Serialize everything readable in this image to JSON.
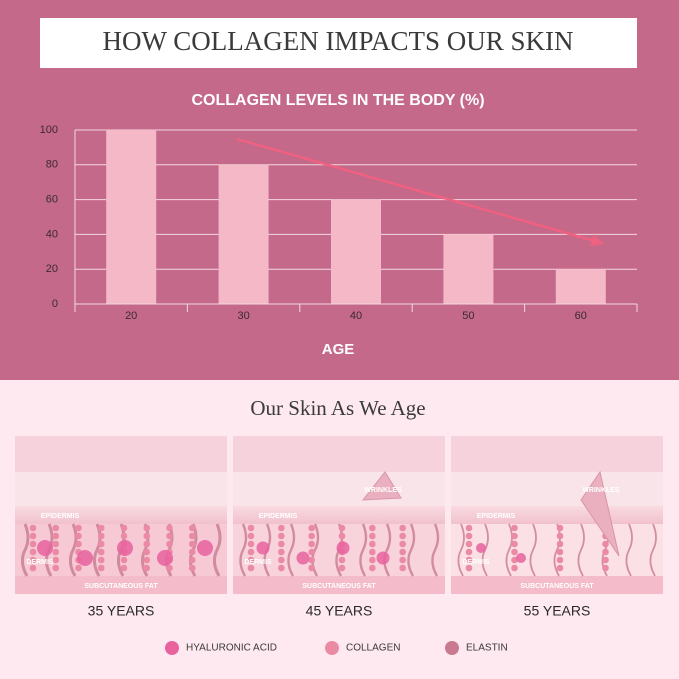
{
  "header": {
    "title": "HOW COLLAGEN IMPACTS OUR SKIN"
  },
  "chart_data": {
    "type": "bar",
    "title": "COLLAGEN LEVELS IN THE BODY (%)",
    "x_label": "AGE",
    "categories": [
      "20",
      "30",
      "40",
      "50",
      "60"
    ],
    "values": [
      100,
      80,
      60,
      40,
      20
    ],
    "color": "#f4b8c6",
    "ylim": [
      0,
      100
    ],
    "yticks": [
      0,
      20,
      40,
      60,
      80,
      100
    ],
    "grid": true
  },
  "skin": {
    "title": "Our Skin As We Age",
    "panels": [
      {
        "caption": "35 YEARS",
        "labels": [
          "EPIDERMIS",
          "DERMIS",
          "SUBCUTANEOUS FAT"
        ]
      },
      {
        "caption": "45 YEARS",
        "labels": [
          "WRINKLES",
          "EPIDERMIS",
          "DERMIS",
          "SUBCUTANEOUS FAT"
        ]
      },
      {
        "caption": "55 YEARS",
        "labels": [
          "WRINKLES",
          "EPIDERMIS",
          "DERMIS",
          "SUBCUTANEOUS FAT"
        ]
      }
    ],
    "legend": [
      {
        "name": "HYALURONIC ACID",
        "color": "#e8629e"
      },
      {
        "name": "COLLAGEN",
        "color": "#ea8aa5"
      },
      {
        "name": "ELASTIN",
        "color": "#c97a90"
      }
    ]
  }
}
